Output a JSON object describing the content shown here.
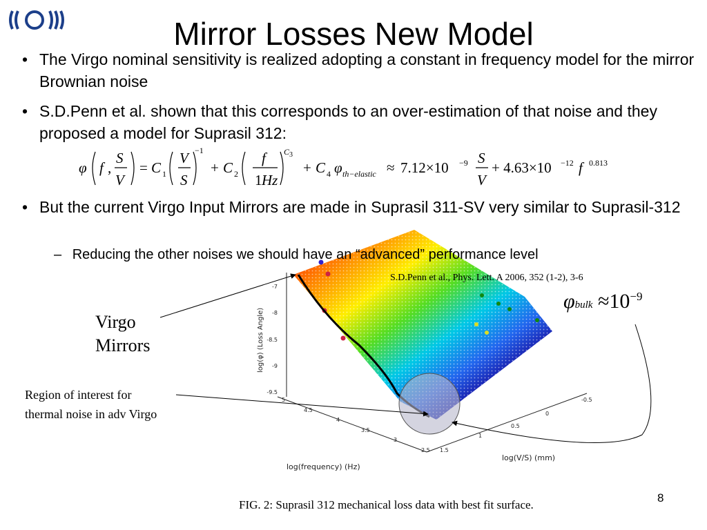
{
  "slide": {
    "title": "Mirror Losses New Model",
    "page_number": "8"
  },
  "logo": {
    "name": "ego-logo-icon"
  },
  "bullets": [
    {
      "marker": "•",
      "text": "The Virgo nominal sensitivity is realized adopting a constant in frequency model for the mirror Brownian noise"
    },
    {
      "marker": "•",
      "text": "S.D.Penn et al. shown that this corresponds to an over-estimation of that noise and they proposed a model for Suprasil 312:"
    },
    {
      "marker": "•",
      "text": "But the current Virgo Input Mirrors are made in Suprasil 311-SV very similar to Suprasil-312"
    }
  ],
  "sub_bullet": {
    "marker": "–",
    "text": "Reducing the other noises we should have an “advanced” performance level"
  },
  "equation": {
    "phi": "φ",
    "f": "f",
    "S": "S",
    "V": "V",
    "eq": "=",
    "C": "C",
    "sub1": "1",
    "sub2": "2",
    "sub4": "4",
    "exp_m1": "−1",
    "exp_c3": "C",
    "exp_c3_sub": "3",
    "plus": "+",
    "one_hz": "1",
    "hz": "Hz",
    "th_elastic": "th−elastic",
    "approx": "≈",
    "coef1": "7.12×10",
    "exp1": "−9",
    "coef2": "+ 4.63×10",
    "exp2": "−12",
    "exp3": "0.813"
  },
  "reference": "S.D.Penn et al., Phys. Lett. A 2006, 352 (1-2), 3-6",
  "phi_bulk": {
    "phi": "φ",
    "sub": "bulk",
    "approx": "≈",
    "base": "10",
    "exp": "−9"
  },
  "annotations": {
    "virgo_line1": "Virgo",
    "virgo_line2": "Mirrors",
    "region_line1": "Region of interest for",
    "region_line2": "thermal noise in adv Virgo"
  },
  "plot": {
    "z_label": "log(φ) (Loss Angle)",
    "z_ticks": [
      "-7",
      "-7.5",
      "-8",
      "-8.5",
      "-9",
      "-9.5"
    ],
    "x_label": "log(frequency) (Hz)",
    "x_ticks": [
      "5",
      "4.5",
      "4",
      "3.5",
      "3",
      "2.5"
    ],
    "y_label": "log(V/S) (mm)",
    "y_ticks": [
      "1.5",
      "1",
      "0.5",
      "0",
      "-0.5"
    ],
    "caption": "FIG. 2: Suprasil 312 mechanical loss data with best fit surface."
  }
}
